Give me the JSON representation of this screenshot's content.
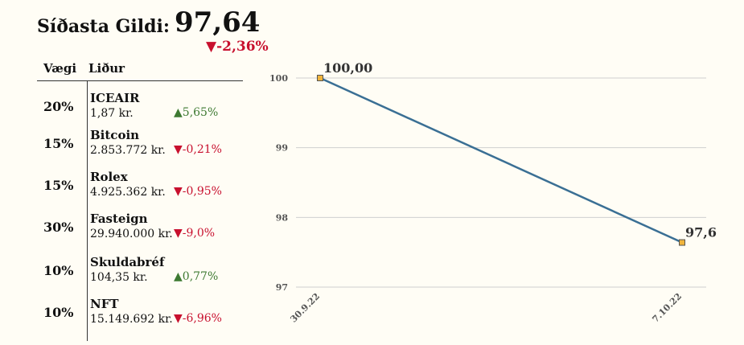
{
  "header": {
    "label": "Síðasta Gildi:",
    "value": "97,64",
    "change": "-2,36%",
    "change_direction": "down"
  },
  "table": {
    "col_weight": "Vægi",
    "col_item": "Liður",
    "rows": [
      {
        "weight": "20%",
        "name": "ICEAIR",
        "price": "1,87 kr.",
        "change": "5,65%",
        "direction": "up"
      },
      {
        "weight": "15%",
        "name": "Bitcoin",
        "price": "2.853.772 kr.",
        "change": "-0,21%",
        "direction": "down"
      },
      {
        "weight": "15%",
        "name": "Rolex",
        "price": "4.925.362 kr.",
        "change": "-0,95%",
        "direction": "down"
      },
      {
        "weight": "30%",
        "name": "Fasteign",
        "price": "29.940.000 kr.",
        "change": "-9,0%",
        "direction": "down"
      },
      {
        "weight": "10%",
        "name": "Skuldabréf",
        "price": "104,35 kr.",
        "change": "0,77%",
        "direction": "up"
      },
      {
        "weight": "10%",
        "name": "NFT",
        "price": "15.149.692 kr.",
        "change": "-6,96%",
        "direction": "down"
      }
    ]
  },
  "colors": {
    "up": "#3e7a32",
    "down": "#c8102e",
    "line": "#3a6f94",
    "marker": "#f0b43c"
  },
  "chart_data": {
    "type": "line",
    "x": [
      "30.9.22",
      "7.10.22"
    ],
    "series": [
      {
        "values": [
          100,
          97.64
        ]
      }
    ],
    "data_labels": [
      "100,00",
      "97,6"
    ],
    "yticks": [
      "97",
      "98",
      "99",
      "100"
    ],
    "ylim": [
      97,
      100
    ],
    "grid": true,
    "title": "",
    "xlabel": "",
    "ylabel": ""
  }
}
